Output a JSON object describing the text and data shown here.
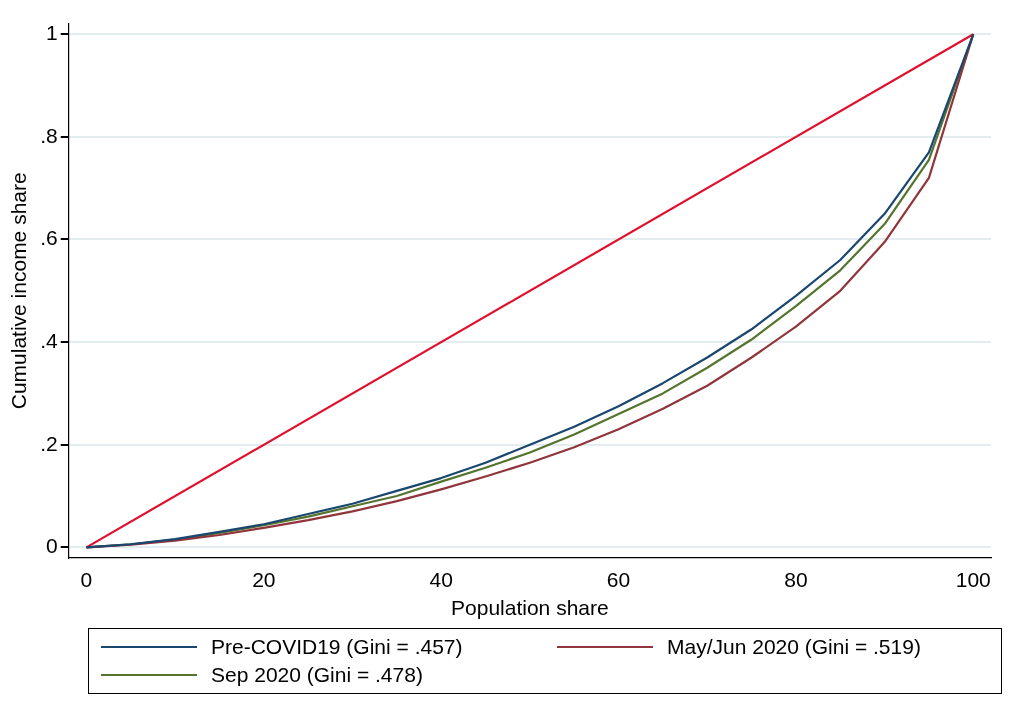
{
  "chart_data": {
    "type": "line",
    "xlabel": "Population share",
    "ylabel": "Cumulative income share",
    "x": [
      0,
      5,
      10,
      15,
      20,
      25,
      30,
      35,
      40,
      45,
      50,
      55,
      60,
      65,
      70,
      75,
      80,
      85,
      90,
      95,
      100
    ],
    "series": [
      {
        "name": "Pre-COVID19 (Gini = .457)",
        "color": "#1a476f",
        "values": [
          0,
          0.006,
          0.016,
          0.03,
          0.045,
          0.065,
          0.085,
          0.11,
          0.135,
          0.165,
          0.2,
          0.235,
          0.275,
          0.32,
          0.37,
          0.425,
          0.49,
          0.56,
          0.65,
          0.77,
          1
        ]
      },
      {
        "name": "May/Jun 2020 (Gini = .519)",
        "color": "#90353b",
        "values": [
          0,
          0.005,
          0.013,
          0.024,
          0.038,
          0.053,
          0.07,
          0.09,
          0.113,
          0.138,
          0.165,
          0.195,
          0.23,
          0.27,
          0.315,
          0.37,
          0.43,
          0.5,
          0.595,
          0.72,
          1
        ]
      },
      {
        "name": "Sep 2020 (Gini = .478)",
        "color": "#55752f",
        "values": [
          0,
          0.006,
          0.015,
          0.028,
          0.043,
          0.06,
          0.08,
          0.1,
          0.128,
          0.155,
          0.185,
          0.22,
          0.26,
          0.3,
          0.35,
          0.405,
          0.47,
          0.54,
          0.63,
          0.755,
          1
        ]
      },
      {
        "color": "#e0102f",
        "x": [
          0,
          100
        ],
        "values": [
          0,
          1
        ]
      }
    ],
    "xlim": [
      -2,
      102
    ],
    "xticks": [
      0,
      20,
      40,
      60,
      80,
      100
    ],
    "ylim": [
      -0.02,
      1.02
    ],
    "yticks": [
      {
        "value": 0,
        "label": "0"
      },
      {
        "value": 0.2,
        "label": ".2"
      },
      {
        "value": 0.4,
        "label": ".4"
      },
      {
        "value": 0.6,
        "label": ".6"
      },
      {
        "value": 0.8,
        "label": ".8"
      },
      {
        "value": 1,
        "label": "1"
      }
    ],
    "grid": "y",
    "legend": "bottom",
    "marker": "none",
    "line_style": "solid"
  }
}
